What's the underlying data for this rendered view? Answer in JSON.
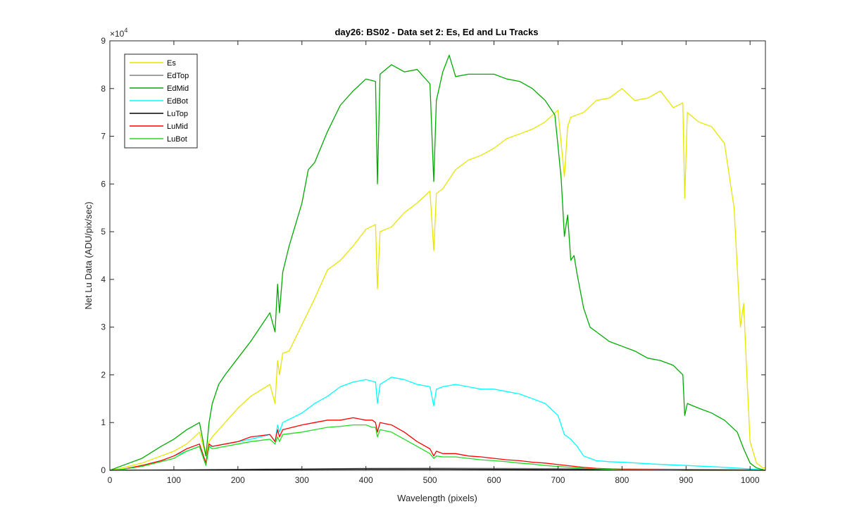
{
  "chart_data": {
    "type": "line",
    "title": "day26: BS02 - Data set 2: Es, Ed and Lu Tracks",
    "xlabel": "Wavelength (pixels)",
    "ylabel": "Net Lu Data (ADU/pix/sec)",
    "y_exponent_label": "×10",
    "y_exponent_power": "4",
    "xlim": [
      0,
      1024
    ],
    "ylim": [
      0,
      9
    ],
    "xticks": [
      0,
      100,
      200,
      300,
      400,
      500,
      600,
      700,
      800,
      900,
      1000
    ],
    "yticks": [
      0,
      1,
      2,
      3,
      4,
      5,
      6,
      7,
      8,
      9
    ],
    "legend_location": "top-left",
    "series": [
      {
        "name": "Es",
        "color": "#e6e600",
        "x": [
          0,
          20,
          50,
          80,
          100,
          120,
          140,
          150,
          155,
          160,
          180,
          200,
          220,
          250,
          258,
          262,
          265,
          270,
          280,
          300,
          320,
          340,
          360,
          380,
          400,
          415,
          418,
          422,
          440,
          460,
          480,
          500,
          506,
          510,
          520,
          540,
          560,
          580,
          600,
          620,
          640,
          660,
          680,
          700,
          710,
          715,
          720,
          740,
          760,
          780,
          800,
          820,
          840,
          860,
          880,
          895,
          898,
          902,
          920,
          940,
          960,
          975,
          985,
          990,
          995,
          1000,
          1010,
          1020,
          1024
        ],
        "y": [
          0.0,
          0.05,
          0.15,
          0.3,
          0.4,
          0.55,
          0.8,
          0.3,
          0.6,
          0.7,
          1.0,
          1.3,
          1.55,
          1.8,
          1.4,
          2.3,
          2.0,
          2.45,
          2.5,
          3.05,
          3.6,
          4.2,
          4.4,
          4.7,
          5.05,
          5.15,
          3.8,
          5.0,
          5.1,
          5.4,
          5.6,
          5.85,
          4.6,
          5.8,
          5.9,
          6.3,
          6.5,
          6.6,
          6.75,
          6.95,
          7.05,
          7.15,
          7.3,
          7.55,
          6.15,
          7.2,
          7.4,
          7.5,
          7.75,
          7.8,
          8.0,
          7.75,
          7.8,
          7.95,
          7.6,
          7.7,
          5.7,
          7.5,
          7.3,
          7.2,
          6.85,
          5.5,
          3.0,
          3.5,
          2.0,
          0.6,
          0.15,
          0.05,
          0.05
        ]
      },
      {
        "name": "EdTop",
        "color": "#808080",
        "x": [
          0,
          100,
          200,
          300,
          400,
          500,
          600,
          700,
          800,
          900,
          1000,
          1024
        ],
        "y": [
          0.0,
          0.01,
          0.02,
          0.03,
          0.04,
          0.045,
          0.04,
          0.035,
          0.025,
          0.02,
          0.01,
          0.0
        ]
      },
      {
        "name": "EdMid",
        "color": "#00aa00",
        "x": [
          0,
          20,
          50,
          80,
          100,
          120,
          140,
          150,
          155,
          160,
          170,
          180,
          200,
          220,
          250,
          258,
          262,
          265,
          270,
          280,
          300,
          310,
          320,
          340,
          360,
          380,
          400,
          415,
          418,
          422,
          440,
          460,
          480,
          500,
          506,
          510,
          520,
          530,
          540,
          560,
          580,
          600,
          620,
          640,
          660,
          680,
          695,
          700,
          705,
          710,
          715,
          720,
          725,
          730,
          740,
          750,
          760,
          780,
          800,
          820,
          840,
          860,
          880,
          895,
          898,
          902,
          920,
          940,
          960,
          980,
          990,
          1000,
          1010,
          1024
        ],
        "y": [
          0.0,
          0.1,
          0.25,
          0.5,
          0.65,
          0.85,
          1.0,
          0.3,
          1.0,
          1.4,
          1.8,
          2.0,
          2.35,
          2.7,
          3.3,
          2.9,
          3.9,
          3.3,
          4.15,
          4.7,
          5.6,
          6.3,
          6.45,
          7.1,
          7.65,
          7.95,
          8.2,
          8.15,
          6.0,
          8.3,
          8.5,
          8.35,
          8.4,
          8.1,
          6.05,
          7.75,
          8.35,
          8.7,
          8.25,
          8.3,
          8.3,
          8.3,
          8.2,
          8.15,
          8.0,
          7.75,
          7.45,
          6.8,
          6.1,
          4.9,
          5.35,
          4.4,
          4.5,
          4.1,
          3.4,
          3.0,
          2.9,
          2.7,
          2.6,
          2.5,
          2.35,
          2.3,
          2.2,
          2.0,
          1.15,
          1.4,
          1.3,
          1.2,
          1.05,
          0.8,
          0.45,
          0.15,
          0.05,
          0.0
        ]
      },
      {
        "name": "EdBot",
        "color": "#00ffff",
        "x": [
          0,
          20,
          50,
          80,
          100,
          120,
          140,
          150,
          155,
          160,
          180,
          200,
          220,
          250,
          258,
          262,
          265,
          270,
          300,
          320,
          340,
          360,
          380,
          400,
          415,
          418,
          422,
          440,
          460,
          480,
          500,
          506,
          510,
          520,
          540,
          560,
          580,
          600,
          620,
          640,
          660,
          680,
          700,
          710,
          720,
          730,
          740,
          760,
          780,
          800,
          850,
          900,
          950,
          1000,
          1024
        ],
        "y": [
          0.0,
          0.02,
          0.1,
          0.2,
          0.3,
          0.4,
          0.5,
          0.1,
          0.5,
          0.5,
          0.55,
          0.6,
          0.65,
          0.75,
          0.6,
          0.95,
          0.8,
          1.0,
          1.2,
          1.4,
          1.55,
          1.75,
          1.85,
          1.9,
          1.85,
          1.4,
          1.8,
          1.95,
          1.9,
          1.8,
          1.75,
          1.35,
          1.7,
          1.75,
          1.8,
          1.75,
          1.7,
          1.7,
          1.65,
          1.6,
          1.5,
          1.4,
          1.15,
          0.75,
          0.65,
          0.5,
          0.3,
          0.2,
          0.18,
          0.17,
          0.13,
          0.1,
          0.07,
          0.03,
          0.0
        ]
      },
      {
        "name": "LuTop",
        "color": "#000000",
        "x": [
          0,
          100,
          200,
          300,
          400,
          500,
          600,
          700,
          800,
          900,
          1000,
          1024
        ],
        "y": [
          0.0,
          0.005,
          0.01,
          0.02,
          0.025,
          0.025,
          0.02,
          0.015,
          0.01,
          0.005,
          0.002,
          0.0
        ]
      },
      {
        "name": "LuMid",
        "color": "#ff0000",
        "x": [
          0,
          20,
          50,
          80,
          100,
          120,
          140,
          150,
          155,
          160,
          180,
          200,
          220,
          250,
          258,
          262,
          265,
          270,
          300,
          320,
          340,
          360,
          380,
          400,
          410,
          415,
          418,
          422,
          440,
          460,
          480,
          500,
          506,
          510,
          520,
          540,
          560,
          580,
          600,
          620,
          640,
          660,
          680,
          700,
          720,
          740,
          760,
          800,
          850,
          900,
          1000,
          1024
        ],
        "y": [
          0.0,
          0.02,
          0.1,
          0.2,
          0.3,
          0.45,
          0.55,
          0.15,
          0.55,
          0.5,
          0.55,
          0.6,
          0.7,
          0.75,
          0.6,
          0.85,
          0.7,
          0.85,
          0.95,
          1.0,
          1.05,
          1.05,
          1.1,
          1.05,
          1.05,
          1.0,
          0.8,
          1.0,
          0.95,
          0.8,
          0.6,
          0.45,
          0.3,
          0.4,
          0.35,
          0.35,
          0.3,
          0.28,
          0.25,
          0.22,
          0.2,
          0.17,
          0.15,
          0.12,
          0.09,
          0.06,
          0.04,
          0.02,
          0.01,
          0.0,
          0.0,
          0.0
        ]
      },
      {
        "name": "LuBot",
        "color": "#22dd22",
        "x": [
          0,
          20,
          50,
          80,
          100,
          120,
          140,
          150,
          155,
          160,
          180,
          200,
          220,
          250,
          258,
          262,
          265,
          270,
          300,
          320,
          340,
          360,
          380,
          400,
          410,
          415,
          418,
          422,
          440,
          460,
          480,
          500,
          506,
          510,
          520,
          540,
          560,
          580,
          600,
          620,
          640,
          660,
          680,
          700,
          720,
          740,
          760,
          800,
          850,
          900,
          1000,
          1024
        ],
        "y": [
          0.0,
          0.02,
          0.08,
          0.18,
          0.25,
          0.4,
          0.5,
          0.1,
          0.5,
          0.45,
          0.5,
          0.55,
          0.6,
          0.65,
          0.55,
          0.7,
          0.6,
          0.75,
          0.8,
          0.85,
          0.9,
          0.92,
          0.95,
          0.95,
          0.9,
          0.9,
          0.7,
          0.85,
          0.8,
          0.65,
          0.5,
          0.35,
          0.25,
          0.3,
          0.28,
          0.28,
          0.25,
          0.22,
          0.2,
          0.18,
          0.15,
          0.13,
          0.1,
          0.08,
          0.06,
          0.04,
          0.03,
          0.01,
          0.005,
          0.0,
          0.0,
          0.0
        ]
      }
    ]
  }
}
